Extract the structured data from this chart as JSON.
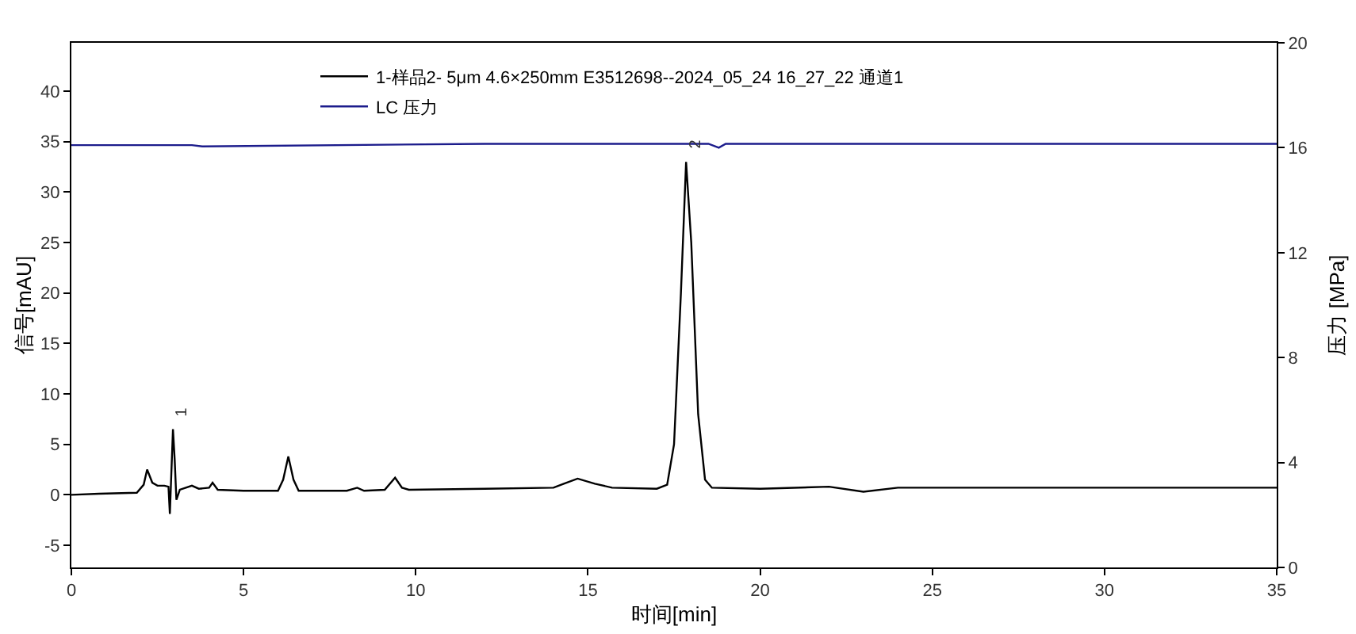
{
  "chart_data": {
    "type": "line",
    "xlabel": "时间[min]",
    "ylabel": "信号[mAU]",
    "y2label": "压力 [MPa]",
    "xlim": [
      0,
      35
    ],
    "xticks": [
      0,
      5,
      10,
      15,
      20,
      25,
      30,
      35
    ],
    "ylim": [
      -7.2,
      44.8
    ],
    "yticks": [
      -5,
      0,
      5,
      10,
      15,
      20,
      25,
      30,
      35,
      40
    ],
    "y2lim": [
      0,
      20
    ],
    "y2ticks": [
      0,
      4,
      8,
      12,
      16,
      20
    ],
    "grid": false,
    "legend": "top",
    "marker": "none",
    "line_style": "solid",
    "annotations": [
      {
        "text": "1",
        "x": 2.95,
        "y": 6.5
      },
      {
        "text": "2",
        "x": 17.85,
        "y": 33
      }
    ],
    "series": [
      {
        "name": "1-样品2- 5μm 4.6×250mm E3512698--2024_05_24 16_27_22 通道1",
        "color": "#000000",
        "x": [
          0,
          0.8,
          1.9,
          2.1,
          2.2,
          2.35,
          2.5,
          2.7,
          2.82,
          2.86,
          2.95,
          3.0,
          3.05,
          3.15,
          3.5,
          3.7,
          4.0,
          4.1,
          4.25,
          5,
          6.0,
          6.15,
          6.3,
          6.45,
          6.6,
          8.0,
          8.3,
          8.5,
          9.1,
          9.4,
          9.6,
          9.8,
          12,
          14,
          14.3,
          14.7,
          15.2,
          15.7,
          17.0,
          17.3,
          17.5,
          17.7,
          17.85,
          18.0,
          18.2,
          18.4,
          18.6,
          20,
          22,
          23,
          24,
          30,
          35
        ],
        "values": [
          0,
          0.1,
          0.2,
          1.0,
          2.5,
          1.2,
          0.9,
          0.9,
          0.8,
          -1.9,
          6.5,
          3.5,
          -0.5,
          0.5,
          0.9,
          0.6,
          0.7,
          1.2,
          0.5,
          0.4,
          0.4,
          1.5,
          3.8,
          1.5,
          0.4,
          0.4,
          0.7,
          0.4,
          0.5,
          1.7,
          0.7,
          0.5,
          0.6,
          0.7,
          1.1,
          1.6,
          1.1,
          0.7,
          0.6,
          1.0,
          5,
          20,
          33,
          25,
          8,
          1.5,
          0.7,
          0.6,
          0.8,
          0.3,
          0.7,
          0.7,
          0.7
        ]
      },
      {
        "name": "LC 压力",
        "color": "#1c1c8c",
        "axis": "y2",
        "x": [
          0,
          3.5,
          3.8,
          12,
          17,
          18.5,
          18.8,
          19,
          35
        ],
        "values": [
          16.1,
          16.1,
          16.05,
          16.15,
          16.15,
          16.15,
          16.0,
          16.15,
          16.15
        ]
      }
    ]
  }
}
